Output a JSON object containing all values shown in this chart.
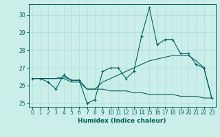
{
  "xlabel": "Humidex (Indice chaleur)",
  "background_color": "#cceee8",
  "line_color": "#006060",
  "grid_color": "#aadddd",
  "xlim": [
    -0.5,
    23.5
  ],
  "ylim": [
    24.8,
    30.6
  ],
  "yticks": [
    25,
    26,
    27,
    28,
    29,
    30
  ],
  "xticks": [
    0,
    1,
    2,
    3,
    4,
    5,
    6,
    7,
    8,
    9,
    10,
    11,
    12,
    13,
    14,
    15,
    16,
    17,
    18,
    19,
    20,
    21,
    22,
    23
  ],
  "line1": [
    26.4,
    26.4,
    26.2,
    25.8,
    26.6,
    26.3,
    26.3,
    25.0,
    25.2,
    26.8,
    27.0,
    27.0,
    26.4,
    26.8,
    28.8,
    30.4,
    28.3,
    28.6,
    28.6,
    27.8,
    27.8,
    27.2,
    27.0,
    25.3
  ],
  "line2": [
    26.4,
    26.4,
    26.4,
    26.4,
    26.5,
    26.3,
    26.3,
    25.8,
    25.8,
    26.2,
    26.4,
    26.6,
    26.8,
    27.0,
    27.2,
    27.4,
    27.5,
    27.6,
    27.7,
    27.7,
    27.7,
    27.4,
    27.0,
    25.3
  ],
  "line3": [
    26.4,
    26.4,
    26.4,
    26.4,
    26.4,
    26.2,
    26.2,
    25.8,
    25.8,
    25.8,
    25.7,
    25.7,
    25.7,
    25.6,
    25.6,
    25.5,
    25.5,
    25.5,
    25.5,
    25.4,
    25.4,
    25.4,
    25.3,
    25.3
  ]
}
